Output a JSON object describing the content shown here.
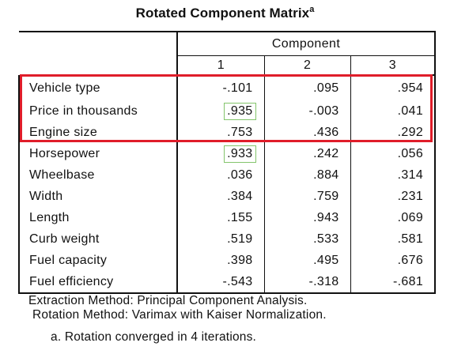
{
  "title": {
    "text": "Rotated Component Matrix",
    "superscript": "a"
  },
  "table": {
    "group_header": "Component",
    "component_headers": [
      "1",
      "2",
      "3"
    ],
    "rows": [
      {
        "label": "Vehicle type",
        "values": [
          "-.101",
          ".095",
          ".954"
        ]
      },
      {
        "label": "Price in thousands",
        "values": [
          ".935",
          "-.003",
          ".041"
        ]
      },
      {
        "label": "Engine size",
        "values": [
          ".753",
          ".436",
          ".292"
        ]
      },
      {
        "label": "Horsepower",
        "values": [
          ".933",
          ".242",
          ".056"
        ]
      },
      {
        "label": "Wheelbase",
        "values": [
          ".036",
          ".884",
          ".314"
        ]
      },
      {
        "label": "Width",
        "values": [
          ".384",
          ".759",
          ".231"
        ]
      },
      {
        "label": "Length",
        "values": [
          ".155",
          ".943",
          ".069"
        ]
      },
      {
        "label": "Curb weight",
        "values": [
          ".519",
          ".533",
          ".581"
        ]
      },
      {
        "label": "Fuel capacity",
        "values": [
          ".398",
          ".495",
          ".676"
        ]
      },
      {
        "label": "Fuel efficiency",
        "values": [
          "-.543",
          "-.318",
          "-.681"
        ]
      }
    ]
  },
  "highlights": {
    "red_rect_color": "#e01d2a",
    "green_box_color": "#84c56c"
  },
  "notes": {
    "extraction": "Extraction Method: Principal Component Analysis.",
    "rotation": "Rotation Method: Varimax with Kaiser Normalization.",
    "footnote": "a. Rotation converged in 4 iterations."
  }
}
